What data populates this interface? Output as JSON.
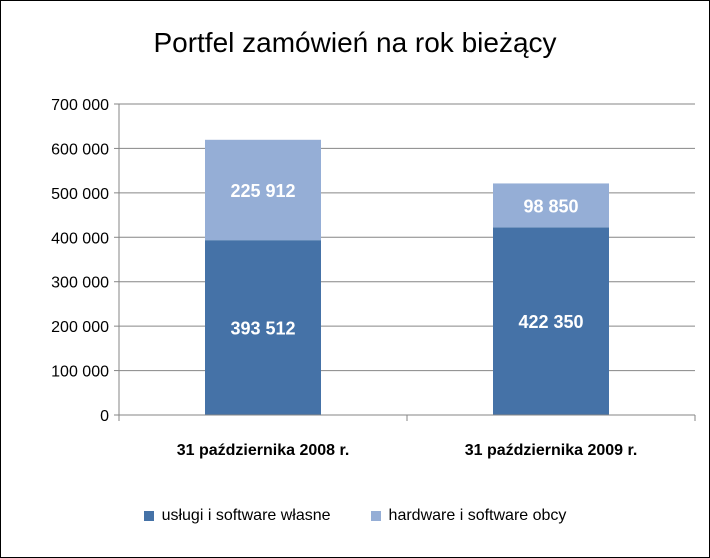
{
  "chart_data": {
    "type": "bar",
    "stacked": true,
    "title": "Portfel zamówień na rok bieżący",
    "xlabel": "",
    "ylabel": "",
    "categories": [
      "31 października 2008 r.",
      "31 października 2009 r."
    ],
    "series": [
      {
        "name": "usługi i software własne",
        "values": [
          393512,
          422350
        ],
        "labels": [
          "393 512",
          "422 350"
        ],
        "color": "#4572A7"
      },
      {
        "name": "hardware i software obcy",
        "values": [
          225912,
          98850
        ],
        "labels": [
          "225 912",
          "98 850"
        ],
        "color": "#95AED6"
      }
    ],
    "ylim": [
      0,
      700000
    ],
    "yticks": [
      0,
      100000,
      200000,
      300000,
      400000,
      500000,
      600000,
      700000
    ],
    "ytick_labels": [
      "0",
      "100 000",
      "200 000",
      "300 000",
      "400 000",
      "500 000",
      "600 000",
      "700 000"
    ],
    "grid": true,
    "legend": "bottom"
  }
}
